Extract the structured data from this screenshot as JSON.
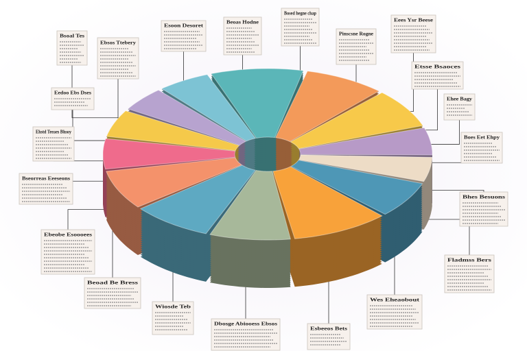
{
  "callouts": [
    {
      "heading": "Bsoal Tes"
    },
    {
      "heading": "Ebsos Ttebery"
    },
    {
      "heading": "Esoon Desoret"
    },
    {
      "heading": "Beoas Hodne"
    },
    {
      "heading": "Bosed hegne chap"
    },
    {
      "heading": "Pinscsne Rogne"
    },
    {
      "heading": "Eees Ysr Beese"
    },
    {
      "heading": "Etsse Bsaoces"
    },
    {
      "heading": "Ehee Bagy"
    },
    {
      "heading": "Boes Eet Ehpy"
    },
    {
      "heading": "Bhes Besuons"
    },
    {
      "heading": "Fladmss Bers"
    },
    {
      "heading": "Wes Eheaobout"
    },
    {
      "heading": "Esbeeos Bets"
    },
    {
      "heading": "Dbosge Abiooess Ebsos"
    },
    {
      "heading": "Wiosde Teb"
    },
    {
      "heading": "Beoad Be Bress"
    },
    {
      "heading": "Ebeobe Esoooees"
    },
    {
      "heading": "Bseorreas Eeeseons"
    },
    {
      "heading": "Ehstd Teeaes Bhsoy"
    },
    {
      "heading": "Eedoo Ebs Dses"
    }
  ]
}
